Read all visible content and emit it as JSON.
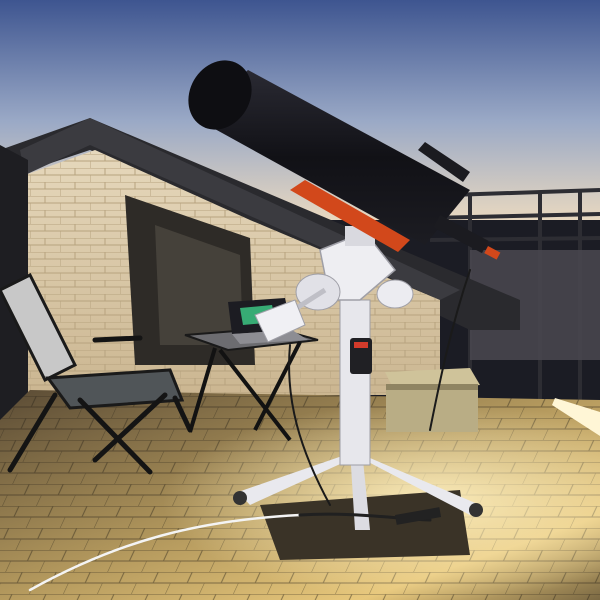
{
  "scene": {
    "subject": "telescope-on-rooftop-terrace-at-dusk",
    "colors": {
      "sky_top": "#3e5590",
      "sky_mid": "#9aa9c6",
      "sky_horizon": "#e8d8c0",
      "tube": "#15151a",
      "mount": "#e9e9ee",
      "accent_orange": "#d2481b",
      "wall": "#d8c7a8",
      "floor_lit": "#e7c77b",
      "floor_dark": "#3b3326",
      "chair_fabric": "#c8c8c8",
      "cooler": "#b9ad85",
      "screen_glow": "#3fd08a"
    }
  }
}
